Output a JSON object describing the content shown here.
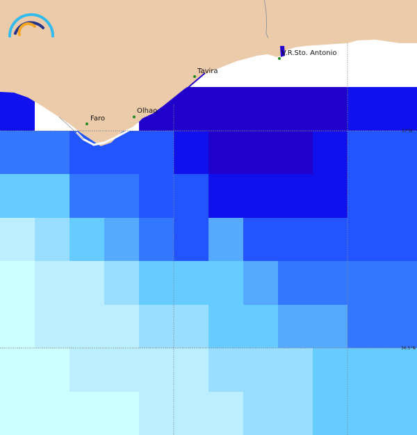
{
  "palette": {
    "A": "#2200cc",
    "B": "#1111ee",
    "C": "#2255ff",
    "D": "#3377ff",
    "E": "#55aaff",
    "F": "#66ccff",
    "G": "#99ddff",
    "H": "#bbeeff",
    "I": "#ccffff",
    "W": "#ffffff"
  },
  "land_color": "#eccbaa",
  "grid_cells": [
    "BWWWAAAAAABB",
    "DDCCCBAAABCC",
    "FFDDCCBBBBCC",
    "HGFEDCECCCCC",
    "IHHGFFFEDDDD",
    "IHHHGGFFEEDD",
    "IIHHHHGGGFFF",
    "IIIIHHHGGFFF"
  ],
  "gridlines": {
    "lat_labels": [
      "37°N",
      "36.5°N"
    ]
  },
  "cities": [
    {
      "name": "Faro"
    },
    {
      "name": "Olhao"
    },
    {
      "name": "Tavira"
    },
    {
      "name": "V.R.Sto. Antonio"
    }
  ],
  "logo": {
    "colors": [
      "#33bbee",
      "#223388",
      "#f5a623"
    ]
  }
}
